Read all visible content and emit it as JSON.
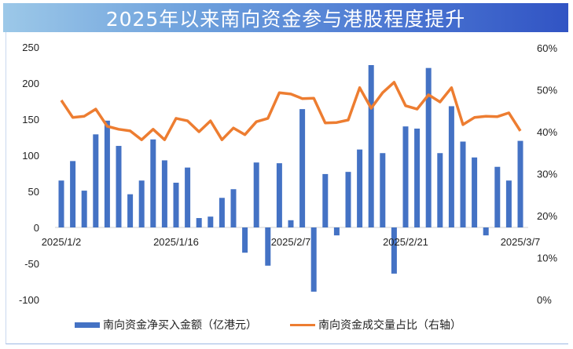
{
  "title": "2025年以来南向资金参与港股程度提升",
  "colors": {
    "bar": "#4472c4",
    "line": "#ed7d31",
    "title_start": "#9cc8e8",
    "title_end": "#3154c4"
  },
  "legend": {
    "bar_label": "南向资金净买入金额（亿港元）",
    "line_label": "南向资金成交量占比（右轴）"
  },
  "axes": {
    "left_ticks": [
      "250",
      "200",
      "150",
      "100",
      "50",
      "0",
      "-50",
      "-100"
    ],
    "right_ticks": [
      "60%",
      "50%",
      "40%",
      "30%",
      "20%",
      "10%",
      "0%"
    ],
    "x_labels": [
      "2025/1/2",
      "2025/1/16",
      "2025/2/7",
      "2025/2/21",
      "2025/3/7"
    ]
  },
  "chart_data": {
    "type": "bar+line",
    "title": "2025年以来南向资金参与港股程度提升",
    "xlabel": "",
    "ylabel": "亿港元",
    "y2label": "%",
    "ylim": [
      -100,
      250
    ],
    "y2lim": [
      0,
      60
    ],
    "x_tick_labels": [
      "2025/1/2",
      "2025/1/16",
      "2025/2/7",
      "2025/2/21",
      "2025/3/7"
    ],
    "x_tick_every": 10,
    "n_points": 41,
    "grid": false,
    "legend_position": "bottom",
    "series": [
      {
        "name": "南向资金净买入金额（亿港元）",
        "type": "bar",
        "axis": "left",
        "values": [
          65,
          92,
          51,
          129,
          148,
          113,
          46,
          65,
          122,
          93,
          62,
          83,
          13,
          15,
          41,
          53,
          -35,
          90,
          -53,
          89,
          10,
          164,
          -89,
          74,
          -11,
          77,
          108,
          225,
          103,
          -64,
          140,
          137,
          221,
          103,
          168,
          119,
          97,
          -11,
          84,
          65,
          120
        ]
      },
      {
        "name": "南向资金成交量占比（右轴）",
        "type": "line",
        "axis": "right",
        "values": [
          47.5,
          43.4,
          43.7,
          45.4,
          41.3,
          40.6,
          40.2,
          38.1,
          40.6,
          38.1,
          43.2,
          42.6,
          40.0,
          42.6,
          38.1,
          40.9,
          39.3,
          42.4,
          43.2,
          49.3,
          49.0,
          47.9,
          48.0,
          42.1,
          42.2,
          42.8,
          50.5,
          45.6,
          49.3,
          51.8,
          46.2,
          45.4,
          48.8,
          47.1,
          50.5,
          41.7,
          43.4,
          43.7,
          43.6,
          44.5,
          40.2
        ]
      }
    ]
  }
}
